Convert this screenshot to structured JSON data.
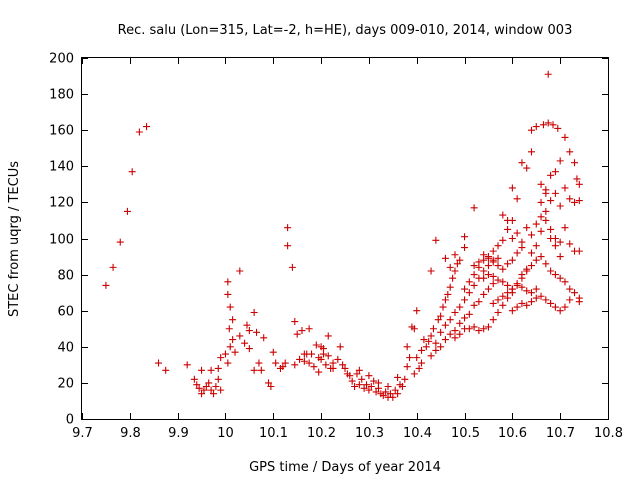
{
  "chart_data": {
    "type": "scatter",
    "title": "Rec. salu (Lon=315, Lat=-2, h=HE), days 009-010, 2014, window 003",
    "xlabel": "GPS time / Days of year 2014",
    "ylabel": "STEC from uqrg / TECUs",
    "xlim": [
      9.7,
      10.8
    ],
    "ylim": [
      0,
      200
    ],
    "xticks": [
      "9.7",
      "9.8",
      "9.9",
      "10",
      "10.1",
      "10.2",
      "10.3",
      "10.4",
      "10.5",
      "10.6",
      "10.7",
      "10.8"
    ],
    "yticks": [
      "0",
      "20",
      "40",
      "60",
      "80",
      "100",
      "120",
      "140",
      "160",
      "180",
      "200"
    ],
    "grid": false,
    "marker": "+",
    "color": "#cc0000",
    "series": [
      {
        "points": [
          [
            9.75,
            74
          ],
          [
            9.765,
            84
          ],
          [
            9.78,
            98
          ],
          [
            9.795,
            115
          ],
          [
            9.805,
            137
          ],
          [
            9.82,
            159
          ],
          [
            9.835,
            162
          ],
          [
            9.86,
            31
          ],
          [
            9.875,
            27
          ],
          [
            9.92,
            30
          ],
          [
            9.935,
            22
          ],
          [
            9.94,
            19
          ],
          [
            9.945,
            17
          ],
          [
            9.95,
            14
          ],
          [
            9.955,
            16
          ],
          [
            9.96,
            18
          ],
          [
            9.965,
            20
          ],
          [
            9.97,
            16
          ],
          [
            9.975,
            14
          ],
          [
            9.98,
            18
          ],
          [
            9.985,
            22
          ],
          [
            9.99,
            16
          ],
          [
            9.95,
            27
          ],
          [
            9.97,
            27
          ],
          [
            9.985,
            28
          ],
          [
            9.99,
            34
          ],
          [
            10.0,
            36
          ],
          [
            10.005,
            31
          ],
          [
            10.01,
            40
          ],
          [
            10.015,
            44
          ],
          [
            10.02,
            37
          ],
          [
            10.03,
            46
          ],
          [
            10.04,
            42
          ],
          [
            10.05,
            39
          ],
          [
            10.06,
            27
          ],
          [
            10.07,
            31
          ],
          [
            10.075,
            27
          ],
          [
            10.09,
            20
          ],
          [
            10.095,
            18
          ],
          [
            10.005,
            76
          ],
          [
            10.005,
            69
          ],
          [
            10.01,
            62
          ],
          [
            10.015,
            55
          ],
          [
            10.008,
            50
          ],
          [
            10.03,
            82
          ],
          [
            10.045,
            52
          ],
          [
            10.05,
            49
          ],
          [
            10.06,
            59
          ],
          [
            10.065,
            48
          ],
          [
            10.08,
            45
          ],
          [
            10.1,
            37
          ],
          [
            10.105,
            31
          ],
          [
            10.115,
            28
          ],
          [
            10.12,
            29
          ],
          [
            10.125,
            31
          ],
          [
            10.13,
            106
          ],
          [
            10.13,
            96
          ],
          [
            10.14,
            84
          ],
          [
            10.145,
            54
          ],
          [
            10.15,
            47
          ],
          [
            10.16,
            49
          ],
          [
            10.17,
            36
          ],
          [
            10.165,
            32
          ],
          [
            10.175,
            50
          ],
          [
            10.18,
            36
          ],
          [
            10.19,
            41
          ],
          [
            10.195,
            34
          ],
          [
            10.2,
            33
          ],
          [
            10.205,
            39
          ],
          [
            10.21,
            30
          ],
          [
            10.215,
            46
          ],
          [
            10.22,
            28
          ],
          [
            10.225,
            31
          ],
          [
            10.145,
            30
          ],
          [
            10.155,
            33
          ],
          [
            10.165,
            36
          ],
          [
            10.175,
            31
          ],
          [
            10.185,
            29
          ],
          [
            10.195,
            26
          ],
          [
            10.2,
            40
          ],
          [
            10.205,
            36
          ],
          [
            10.215,
            35
          ],
          [
            10.225,
            28
          ],
          [
            10.235,
            33
          ],
          [
            10.24,
            40
          ],
          [
            10.245,
            30
          ],
          [
            10.25,
            28
          ],
          [
            10.255,
            25
          ],
          [
            10.26,
            24
          ],
          [
            10.265,
            21
          ],
          [
            10.27,
            18
          ],
          [
            10.275,
            25
          ],
          [
            10.28,
            19
          ],
          [
            10.285,
            22
          ],
          [
            10.29,
            17
          ],
          [
            10.295,
            19
          ],
          [
            10.3,
            16
          ],
          [
            10.305,
            18
          ],
          [
            10.31,
            21
          ],
          [
            10.315,
            15
          ],
          [
            10.32,
            17
          ],
          [
            10.325,
            14
          ],
          [
            10.33,
            13
          ],
          [
            10.335,
            15
          ],
          [
            10.34,
            12
          ],
          [
            10.345,
            14
          ],
          [
            10.35,
            12
          ],
          [
            10.355,
            16
          ],
          [
            10.36,
            14
          ],
          [
            10.365,
            19
          ],
          [
            10.37,
            18
          ],
          [
            10.375,
            22
          ],
          [
            10.38,
            29
          ],
          [
            10.385,
            34
          ],
          [
            10.39,
            51
          ],
          [
            10.395,
            25
          ],
          [
            10.4,
            34
          ],
          [
            10.405,
            28
          ],
          [
            10.41,
            31
          ],
          [
            10.28,
            27
          ],
          [
            10.3,
            24
          ],
          [
            10.32,
            20
          ],
          [
            10.34,
            18
          ],
          [
            10.36,
            23
          ],
          [
            10.38,
            40
          ],
          [
            10.395,
            50
          ],
          [
            10.4,
            60
          ],
          [
            10.41,
            38
          ],
          [
            10.415,
            44
          ],
          [
            10.42,
            40
          ],
          [
            10.425,
            43
          ],
          [
            10.43,
            46
          ],
          [
            10.435,
            50
          ],
          [
            10.44,
            42
          ],
          [
            10.445,
            55
          ],
          [
            10.45,
            57
          ],
          [
            10.455,
            62
          ],
          [
            10.46,
            66
          ],
          [
            10.465,
            69
          ],
          [
            10.47,
            73
          ],
          [
            10.475,
            78
          ],
          [
            10.48,
            82
          ],
          [
            10.485,
            86
          ],
          [
            10.49,
            88
          ],
          [
            10.43,
            82
          ],
          [
            10.44,
            99
          ],
          [
            10.46,
            89
          ],
          [
            10.47,
            84
          ],
          [
            10.48,
            91
          ],
          [
            10.5,
            95
          ],
          [
            10.5,
            101
          ],
          [
            10.52,
            117
          ],
          [
            10.43,
            35
          ],
          [
            10.44,
            38
          ],
          [
            10.45,
            40
          ],
          [
            10.46,
            44
          ],
          [
            10.47,
            47
          ],
          [
            10.48,
            49
          ],
          [
            10.49,
            53
          ],
          [
            10.5,
            56
          ],
          [
            10.51,
            58
          ],
          [
            10.52,
            63
          ],
          [
            10.53,
            65
          ],
          [
            10.54,
            69
          ],
          [
            10.55,
            72
          ],
          [
            10.56,
            75
          ],
          [
            10.45,
            48
          ],
          [
            10.46,
            52
          ],
          [
            10.47,
            55
          ],
          [
            10.48,
            59
          ],
          [
            10.49,
            62
          ],
          [
            10.5,
            66
          ],
          [
            10.51,
            70
          ],
          [
            10.52,
            74
          ],
          [
            10.53,
            78
          ],
          [
            10.54,
            82
          ],
          [
            10.55,
            85
          ],
          [
            10.56,
            88
          ],
          [
            10.57,
            89
          ],
          [
            10.48,
            45
          ],
          [
            10.49,
            47
          ],
          [
            10.5,
            50
          ],
          [
            10.51,
            50
          ],
          [
            10.52,
            51
          ],
          [
            10.53,
            49
          ],
          [
            10.54,
            50
          ],
          [
            10.55,
            51
          ],
          [
            10.56,
            55
          ],
          [
            10.57,
            59
          ],
          [
            10.58,
            63
          ],
          [
            10.59,
            67
          ],
          [
            10.6,
            70
          ],
          [
            10.5,
            72
          ],
          [
            10.51,
            76
          ],
          [
            10.52,
            80
          ],
          [
            10.53,
            84
          ],
          [
            10.54,
            88
          ],
          [
            10.55,
            90
          ],
          [
            10.56,
            93
          ],
          [
            10.57,
            96
          ],
          [
            10.58,
            99
          ],
          [
            10.59,
            105
          ],
          [
            10.6,
            110
          ],
          [
            10.52,
            85
          ],
          [
            10.53,
            87
          ],
          [
            10.54,
            91
          ],
          [
            10.55,
            89
          ],
          [
            10.56,
            87
          ],
          [
            10.57,
            85
          ],
          [
            10.58,
            83
          ],
          [
            10.59,
            86
          ],
          [
            10.6,
            88
          ],
          [
            10.61,
            92
          ],
          [
            10.62,
            95
          ],
          [
            10.54,
            78
          ],
          [
            10.55,
            80
          ],
          [
            10.56,
            79
          ],
          [
            10.57,
            77
          ],
          [
            10.58,
            76
          ],
          [
            10.59,
            74
          ],
          [
            10.6,
            72
          ],
          [
            10.61,
            75
          ],
          [
            10.62,
            78
          ],
          [
            10.63,
            82
          ],
          [
            10.56,
            64
          ],
          [
            10.57,
            66
          ],
          [
            10.58,
            68
          ],
          [
            10.59,
            70
          ],
          [
            10.6,
            72
          ],
          [
            10.61,
            74
          ],
          [
            10.62,
            73
          ],
          [
            10.63,
            71
          ],
          [
            10.64,
            70
          ],
          [
            10.65,
            72
          ],
          [
            10.58,
            113
          ],
          [
            10.59,
            110
          ],
          [
            10.6,
            128
          ],
          [
            10.61,
            122
          ],
          [
            10.62,
            142
          ],
          [
            10.63,
            139
          ],
          [
            10.64,
            148
          ],
          [
            10.64,
            160
          ],
          [
            10.65,
            162
          ],
          [
            10.66,
            130
          ],
          [
            10.665,
            163
          ],
          [
            10.67,
            127
          ],
          [
            10.675,
            164
          ],
          [
            10.68,
            121
          ],
          [
            10.685,
            163
          ],
          [
            10.69,
            125
          ],
          [
            10.695,
            161
          ],
          [
            10.7,
            143
          ],
          [
            10.71,
            156
          ],
          [
            10.72,
            148
          ],
          [
            10.73,
            142
          ],
          [
            10.735,
            133
          ],
          [
            10.74,
            130
          ],
          [
            10.6,
            100
          ],
          [
            10.61,
            103
          ],
          [
            10.62,
            98
          ],
          [
            10.63,
            106
          ],
          [
            10.64,
            102
          ],
          [
            10.65,
            108
          ],
          [
            10.66,
            104
          ],
          [
            10.67,
            110
          ],
          [
            10.68,
            100
          ],
          [
            10.69,
            96
          ],
          [
            10.7,
            90
          ],
          [
            10.6,
            60
          ],
          [
            10.61,
            62
          ],
          [
            10.62,
            64
          ],
          [
            10.63,
            63
          ],
          [
            10.64,
            65
          ],
          [
            10.65,
            67
          ],
          [
            10.66,
            68
          ],
          [
            10.67,
            66
          ],
          [
            10.68,
            64
          ],
          [
            10.69,
            62
          ],
          [
            10.7,
            60
          ],
          [
            10.71,
            62
          ],
          [
            10.72,
            66
          ],
          [
            10.73,
            70
          ],
          [
            10.74,
            67
          ],
          [
            10.62,
            80
          ],
          [
            10.63,
            83
          ],
          [
            10.64,
            85
          ],
          [
            10.65,
            88
          ],
          [
            10.66,
            90
          ],
          [
            10.67,
            86
          ],
          [
            10.68,
            82
          ],
          [
            10.69,
            80
          ],
          [
            10.7,
            78
          ],
          [
            10.71,
            76
          ],
          [
            10.72,
            72
          ],
          [
            10.64,
            92
          ],
          [
            10.65,
            96
          ],
          [
            10.66,
            112
          ],
          [
            10.67,
            115
          ],
          [
            10.68,
            105
          ],
          [
            10.69,
            100
          ],
          [
            10.7,
            98
          ],
          [
            10.71,
            106
          ],
          [
            10.72,
            97
          ],
          [
            10.73,
            93
          ],
          [
            10.66,
            120
          ],
          [
            10.67,
            125
          ],
          [
            10.68,
            135
          ],
          [
            10.69,
            137
          ],
          [
            10.7,
            118
          ],
          [
            10.71,
            128
          ],
          [
            10.72,
            122
          ],
          [
            10.73,
            120
          ],
          [
            10.74,
            121
          ],
          [
            10.675,
            191
          ],
          [
            10.74,
            93
          ],
          [
            10.74,
            65
          ]
        ]
      }
    ]
  }
}
